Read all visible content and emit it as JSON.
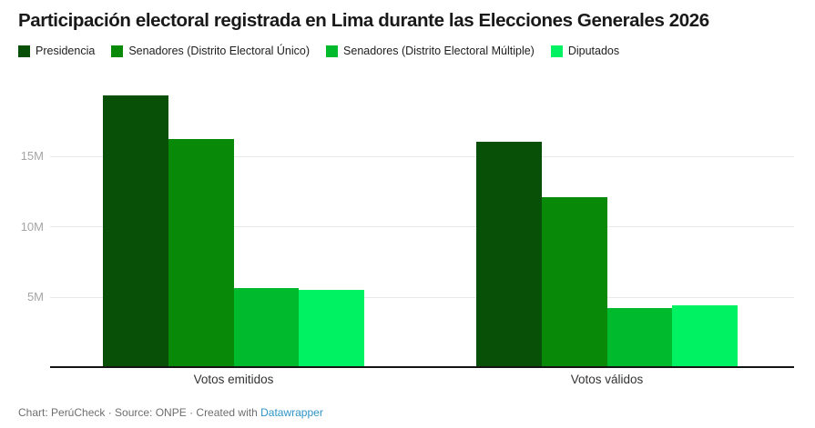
{
  "title": "Participación electoral registrada en Lima durante las Elecciones Generales 2026",
  "footer": {
    "text": "Chart: PerúCheck · Source: ONPE · Created with ",
    "link_label": "Datawrapper",
    "link_color": "#2e94c6"
  },
  "chart_data": {
    "type": "bar",
    "title": "Participación electoral registrada en Lima durante las Elecciones Generales 2026",
    "categories": [
      "Votos emitidos",
      "Votos válidos"
    ],
    "series": [
      {
        "name": "Presidencia",
        "color": "#084f08",
        "values": [
          19.3,
          16.0
        ]
      },
      {
        "name": "Senadores (Distrito Electoral Único)",
        "color": "#088a08",
        "values": [
          16.2,
          12.1
        ]
      },
      {
        "name": "Senadores (Distrito Electoral Múltiple)",
        "color": "#00ba2e",
        "values": [
          5.6,
          4.2
        ]
      },
      {
        "name": "Diputados",
        "color": "#00f263",
        "values": [
          5.5,
          4.4
        ]
      }
    ],
    "unit": "millions of votes",
    "y_ticks": [
      "5M",
      "10M",
      "15M"
    ],
    "y_tick_values": [
      5,
      10,
      15
    ],
    "ylim": [
      0,
      20
    ],
    "grid": true,
    "legend_position": "top",
    "xlabel": "",
    "ylabel": ""
  }
}
